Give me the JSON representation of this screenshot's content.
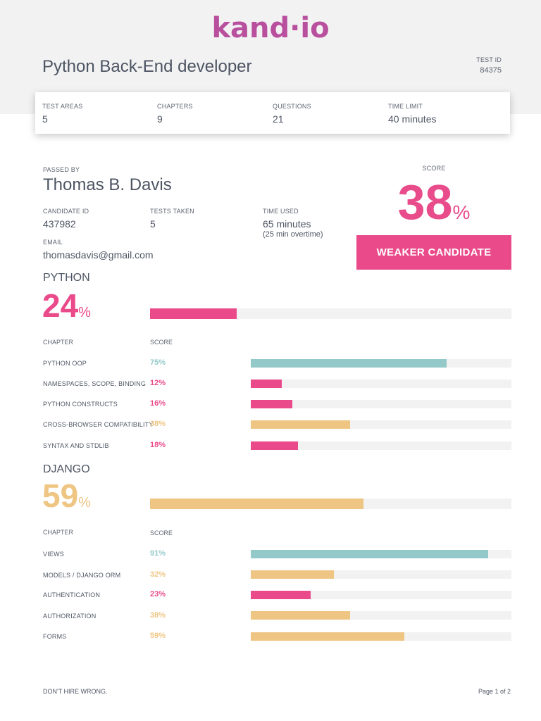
{
  "brand": {
    "logo_text": "kand·io"
  },
  "test": {
    "title": "Python Back-End developer",
    "id_label": "TEST ID",
    "id_value": "84375"
  },
  "summary": [
    {
      "label": "TEST AREAS",
      "value": "5"
    },
    {
      "label": "CHAPTERS",
      "value": "9"
    },
    {
      "label": "QUESTIONS",
      "value": "21"
    },
    {
      "label": "TIME LIMIT",
      "value": "40 minutes"
    }
  ],
  "candidate": {
    "passed_by_label": "PASSED BY",
    "name": "Thomas B. Davis",
    "candidate_id_label": "CANDIDATE ID",
    "candidate_id": "437982",
    "tests_taken_label": "TESTS TAKEN",
    "tests_taken": "5",
    "time_used_label": "TIME USED",
    "time_used": "65 minutes",
    "overtime": "(25 min overtime)",
    "email_label": "EMAIL",
    "email": "thomasdavis@gmail.com"
  },
  "overall": {
    "score_label": "SCORE",
    "score": "38",
    "percent_sign": "%",
    "verdict": "WEAKER CANDIDATE"
  },
  "colors": {
    "pink": "#ea4a8a",
    "orange": "#efc583",
    "teal": "#94c9c9",
    "track": "#f2f2f3",
    "logo": "#b8509e"
  },
  "sections": [
    {
      "title": "PYTHON",
      "score": "24",
      "score_value": 24,
      "color": "#ea4a8a",
      "chapter_header": "CHAPTER",
      "score_header": "SCORE",
      "chapters": [
        {
          "name": "PYTHON OOP",
          "score": "75%",
          "value": 75,
          "color": "#94c9c9"
        },
        {
          "name": "NAMESPACES, SCOPE, BINDING",
          "score": "12%",
          "value": 12,
          "color": "#ea4a8a"
        },
        {
          "name": "PYTHON CONSTRUCTS",
          "score": "16%",
          "value": 16,
          "color": "#ea4a8a"
        },
        {
          "name": "CROSS-BROWSER COMPATIBILITY",
          "score": "38%",
          "value": 38,
          "color": "#efc583"
        },
        {
          "name": "SYNTAX AND STDLIB",
          "score": "18%",
          "value": 18,
          "color": "#ea4a8a"
        }
      ]
    },
    {
      "title": "DJANGO",
      "score": "59",
      "score_value": 59,
      "color": "#efc583",
      "chapter_header": "CHAPTER",
      "score_header": "SCORE",
      "chapters": [
        {
          "name": "VIEWS",
          "score": "91%",
          "value": 91,
          "color": "#94c9c9"
        },
        {
          "name": "MODELS / DJANGO ORM",
          "score": "32%",
          "value": 32,
          "color": "#efc583"
        },
        {
          "name": "AUTHENTICATION",
          "score": "23%",
          "value": 23,
          "color": "#ea4a8a"
        },
        {
          "name": "AUTHORIZATION",
          "score": "38%",
          "value": 38,
          "color": "#efc583"
        },
        {
          "name": "FORMS",
          "score": "59%",
          "value": 59,
          "color": "#efc583"
        }
      ]
    }
  ],
  "footer": {
    "tagline": "DON'T HIRE WRONG.",
    "page": "Page 1 of 2"
  }
}
